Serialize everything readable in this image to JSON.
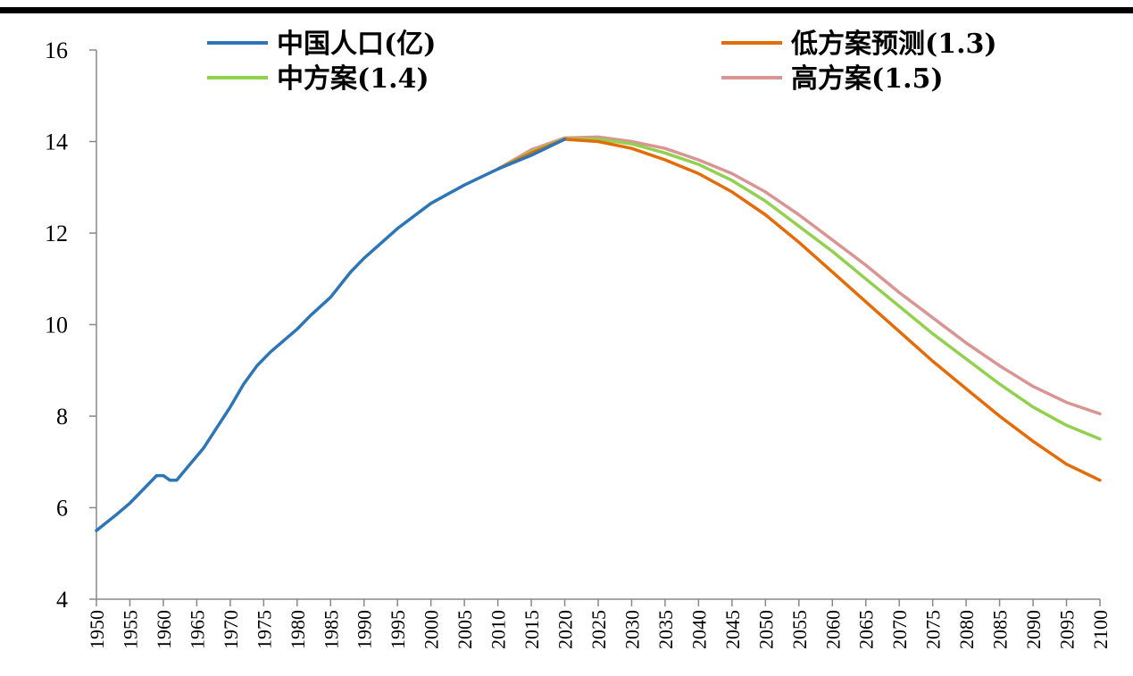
{
  "chart_data": {
    "type": "line",
    "title": "",
    "xlabel": "",
    "ylabel": "",
    "xlim": [
      1950,
      2100
    ],
    "ylim": [
      4,
      16
    ],
    "y_ticks": [
      4,
      6,
      8,
      10,
      12,
      14,
      16
    ],
    "x_ticks": [
      1950,
      1955,
      1960,
      1965,
      1970,
      1975,
      1980,
      1985,
      1990,
      1995,
      2000,
      2005,
      2010,
      2015,
      2020,
      2025,
      2030,
      2035,
      2040,
      2045,
      2050,
      2055,
      2060,
      2065,
      2070,
      2075,
      2080,
      2085,
      2090,
      2095,
      2100
    ],
    "y_tick_labels": [
      "4",
      "6",
      "8",
      "10",
      "12",
      "14",
      "16"
    ],
    "x_tick_labels": [
      "1950",
      "1955",
      "1960",
      "1965",
      "1970",
      "1975",
      "1980",
      "1985",
      "1990",
      "1995",
      "2000",
      "2005",
      "2010",
      "2015",
      "2020",
      "2025",
      "2030",
      "2035",
      "2040",
      "2045",
      "2050",
      "2055",
      "2060",
      "2065",
      "2070",
      "2075",
      "2080",
      "2085",
      "2090",
      "2095",
      "2100"
    ],
    "grid": false,
    "legend_placement": "top",
    "series": [
      {
        "name": "中国人口(亿)",
        "color": "#2e75b6",
        "x": [
          1950,
          1953,
          1955,
          1957,
          1959,
          1960,
          1961,
          1962,
          1964,
          1966,
          1968,
          1970,
          1972,
          1974,
          1976,
          1978,
          1980,
          1982,
          1985,
          1988,
          1990,
          1995,
          2000,
          2005,
          2010,
          2015,
          2020
        ],
        "y": [
          5.5,
          5.85,
          6.1,
          6.4,
          6.7,
          6.7,
          6.6,
          6.6,
          6.95,
          7.3,
          7.75,
          8.2,
          8.7,
          9.1,
          9.4,
          9.65,
          9.9,
          10.2,
          10.6,
          11.15,
          11.45,
          12.1,
          12.65,
          13.05,
          13.4,
          13.7,
          14.05
        ]
      },
      {
        "name": "低方案预测(1.3)",
        "color": "#e36c09",
        "x": [
          2010,
          2015,
          2020,
          2025,
          2030,
          2035,
          2040,
          2045,
          2050,
          2055,
          2060,
          2065,
          2070,
          2075,
          2080,
          2085,
          2090,
          2095,
          2100
        ],
        "y": [
          13.4,
          13.75,
          14.05,
          14.0,
          13.85,
          13.6,
          13.3,
          12.9,
          12.4,
          11.8,
          11.15,
          10.5,
          9.85,
          9.2,
          8.6,
          8.0,
          7.45,
          6.95,
          6.6
        ]
      },
      {
        "name": "中方案(1.4)",
        "color": "#92d050",
        "x": [
          2010,
          2015,
          2020,
          2025,
          2030,
          2035,
          2040,
          2045,
          2050,
          2055,
          2060,
          2065,
          2070,
          2075,
          2080,
          2085,
          2090,
          2095,
          2100
        ],
        "y": [
          13.4,
          13.78,
          14.06,
          14.05,
          13.95,
          13.75,
          13.5,
          13.15,
          12.7,
          12.15,
          11.6,
          11.0,
          10.4,
          9.8,
          9.25,
          8.7,
          8.2,
          7.8,
          7.5
        ]
      },
      {
        "name": "高方案(1.5)",
        "color": "#d99594",
        "x": [
          2010,
          2015,
          2020,
          2025,
          2030,
          2035,
          2040,
          2045,
          2050,
          2055,
          2060,
          2065,
          2070,
          2075,
          2080,
          2085,
          2090,
          2095,
          2100
        ],
        "y": [
          13.4,
          13.82,
          14.08,
          14.1,
          14.0,
          13.85,
          13.6,
          13.3,
          12.9,
          12.4,
          11.85,
          11.3,
          10.7,
          10.15,
          9.6,
          9.1,
          8.65,
          8.3,
          8.05
        ]
      }
    ]
  }
}
